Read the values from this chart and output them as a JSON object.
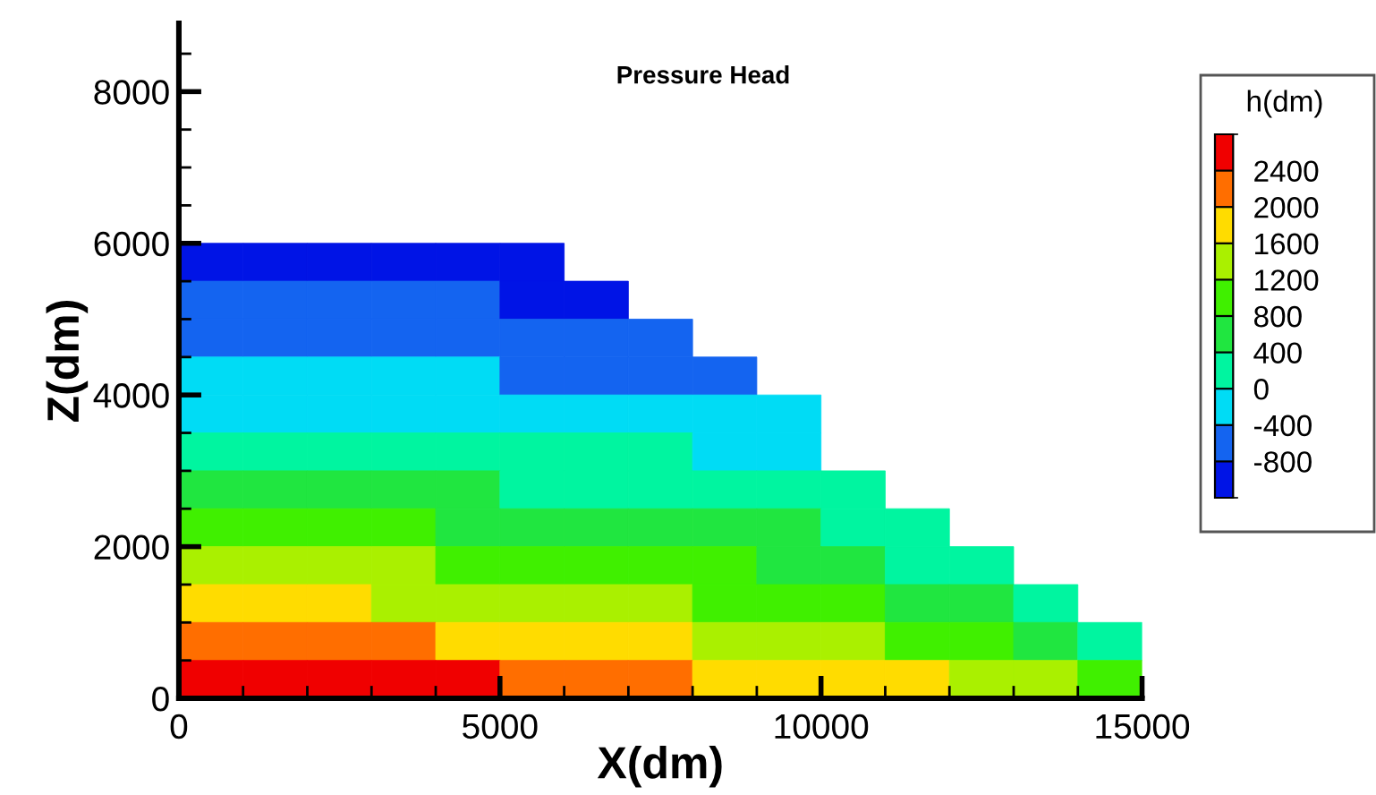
{
  "chart_data": {
    "type": "heatmap",
    "title": "Pressure Head",
    "xlabel": "X(dm)",
    "ylabel": "Z(dm)",
    "clabel": "h(dm)",
    "x": [
      500,
      1500,
      2500,
      3500,
      4500,
      5500,
      6500,
      7500,
      8500,
      9500,
      10500,
      11500,
      12500,
      13500,
      14500
    ],
    "y": [
      5750,
      5250,
      4750,
      4250,
      3750,
      3250,
      2750,
      2250,
      1750,
      1250,
      750,
      250
    ],
    "cells": [
      [
        -1000,
        -1000,
        -1000,
        -1000,
        -1000,
        -1000,
        null,
        null,
        null,
        null,
        null,
        null,
        null,
        null,
        null
      ],
      [
        -600,
        -600,
        -600,
        -600,
        -600,
        -1000,
        -1000,
        null,
        null,
        null,
        null,
        null,
        null,
        null,
        null
      ],
      [
        -600,
        -600,
        -600,
        -600,
        -600,
        -600,
        -600,
        -600,
        null,
        null,
        null,
        null,
        null,
        null,
        null
      ],
      [
        -200,
        -200,
        -200,
        -200,
        -200,
        -600,
        -600,
        -600,
        -600,
        null,
        null,
        null,
        null,
        null,
        null
      ],
      [
        -200,
        -200,
        -200,
        -200,
        -200,
        -200,
        -200,
        -200,
        -200,
        -200,
        null,
        null,
        null,
        null,
        null
      ],
      [
        200,
        200,
        200,
        200,
        200,
        200,
        200,
        200,
        -200,
        -200,
        null,
        null,
        null,
        null,
        null
      ],
      [
        600,
        600,
        600,
        600,
        600,
        200,
        200,
        200,
        200,
        200,
        200,
        null,
        null,
        null,
        null
      ],
      [
        1000,
        1000,
        1000,
        1000,
        600,
        600,
        600,
        600,
        600,
        600,
        200,
        200,
        null,
        null,
        null
      ],
      [
        1400,
        1400,
        1400,
        1400,
        1000,
        1000,
        1000,
        1000,
        1000,
        600,
        600,
        200,
        200,
        null,
        null
      ],
      [
        1800,
        1800,
        1800,
        1400,
        1400,
        1400,
        1400,
        1400,
        1000,
        1000,
        1000,
        600,
        600,
        200,
        null
      ],
      [
        2200,
        2200,
        2200,
        2200,
        1800,
        1800,
        1800,
        1800,
        1400,
        1400,
        1400,
        1000,
        1000,
        600,
        200
      ],
      [
        2600,
        2600,
        2600,
        2600,
        2600,
        2200,
        2200,
        2200,
        1800,
        1800,
        1800,
        1800,
        1400,
        1400,
        1000
      ]
    ],
    "colors": [
      "#0014e6",
      "#1464f0",
      "#00dcf5",
      "#00f5a0",
      "#20e640",
      "#40f000",
      "#aaf000",
      "#ffdc00",
      "#ff6e00",
      "#f00000"
    ],
    "clim": [
      -1200,
      2800
    ],
    "cticks": [
      -800,
      -400,
      0,
      400,
      800,
      1200,
      1600,
      2000,
      2400
    ],
    "xlim": [
      0,
      15000
    ],
    "xticks": [
      0,
      {
        "value": 1000,
        "label": null
      },
      {
        "value": 2000,
        "label": null
      },
      {
        "value": 3000,
        "label": null
      },
      {
        "value": 4000,
        "label": null
      },
      5000,
      {
        "value": 6000,
        "label": null
      },
      {
        "value": 7000,
        "label": null
      },
      {
        "value": 8000,
        "label": null
      },
      {
        "value": 9000,
        "label": null
      },
      10000,
      {
        "value": 11000,
        "label": null
      },
      {
        "value": 12000,
        "label": null
      },
      {
        "value": 13000,
        "label": null
      },
      {
        "value": 14000,
        "label": null
      },
      15000
    ],
    "ylim": [
      0,
      8900
    ],
    "yticks": [
      0,
      {
        "value": 500,
        "label": null
      },
      {
        "value": 1000,
        "label": null
      },
      {
        "value": 1500,
        "label": null
      },
      2000,
      {
        "value": 2500,
        "label": null
      },
      {
        "value": 3000,
        "label": null
      },
      {
        "value": 3500,
        "label": null
      },
      4000,
      {
        "value": 4500,
        "label": null
      },
      {
        "value": 5000,
        "label": null
      },
      {
        "value": 5500,
        "label": null
      },
      6000,
      {
        "value": 6500,
        "label": null
      },
      {
        "value": 7000,
        "label": null
      },
      {
        "value": 7500,
        "label": null
      },
      8000,
      {
        "value": 8500,
        "label": null
      }
    ],
    "grid": false
  }
}
